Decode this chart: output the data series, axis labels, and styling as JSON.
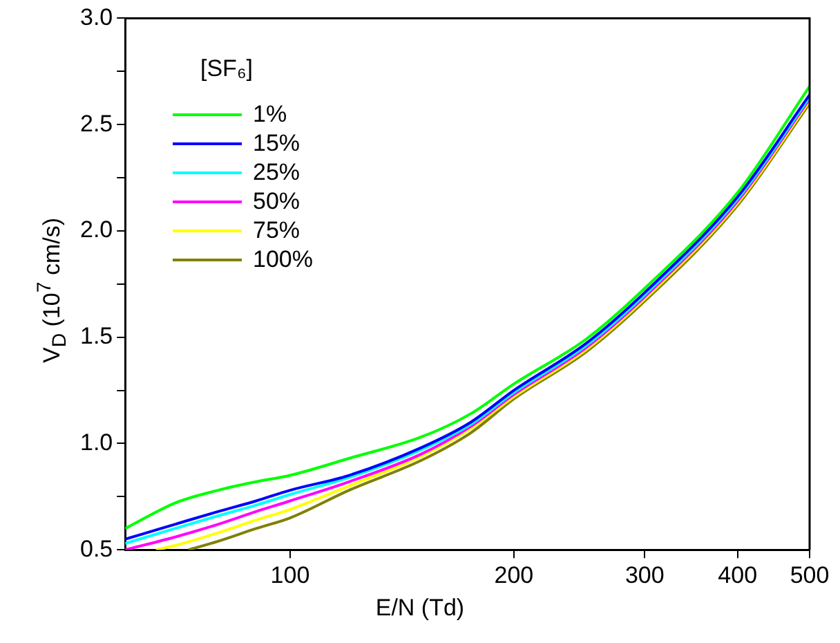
{
  "chart_data": {
    "type": "line",
    "xlabel": "E/N (Td)",
    "ylabel": "V$_{D}$ (10$^{7}$ cm/s)",
    "legend_title": "[SF₆]",
    "legend": "top left",
    "log": "x",
    "marker": "none",
    "line_style": "solid",
    "grid": false,
    "xlim": [
      60,
      500
    ],
    "xticks": [
      100,
      200,
      300,
      400,
      500
    ],
    "ylim": [
      0.5,
      3.0
    ],
    "yticks": [
      0.5,
      {
        "value": 0.75,
        "label": null
      },
      {
        "value": 1,
        "label": "1.0"
      },
      {
        "value": 1.25,
        "label": null
      },
      1.5,
      {
        "value": 1.75,
        "label": null
      },
      {
        "value": 2,
        "label": "2.0"
      },
      {
        "value": 2.25,
        "label": null
      },
      2.5,
      {
        "value": 2.75,
        "label": null
      },
      {
        "value": 3,
        "label": "3.0"
      }
    ],
    "series": [
      {
        "name": "1%",
        "color": "#00ff00",
        "x": [
          60,
          70,
          80,
          90,
          100,
          120,
          150,
          175,
          200,
          250,
          300,
          400,
          500
        ],
        "values": [
          0.6,
          0.72,
          0.78,
          0.82,
          0.85,
          0.93,
          1.03,
          1.14,
          1.28,
          1.49,
          1.73,
          2.18,
          2.68
        ]
      },
      {
        "name": "15%",
        "color": "#0000ff",
        "x": [
          60,
          70,
          80,
          90,
          100,
          120,
          150,
          175,
          200,
          250,
          300,
          400,
          500
        ],
        "values": [
          0.55,
          0.62,
          0.68,
          0.73,
          0.78,
          0.85,
          0.98,
          1.1,
          1.25,
          1.47,
          1.71,
          2.16,
          2.64
        ]
      },
      {
        "name": "25%",
        "color": "#00ffff",
        "x": [
          60,
          70,
          80,
          90,
          100,
          120,
          150,
          175,
          200,
          250,
          300,
          400,
          500
        ],
        "values": [
          0.53,
          0.6,
          0.66,
          0.71,
          0.76,
          0.84,
          0.97,
          1.09,
          1.24,
          1.46,
          1.7,
          2.15,
          2.63
        ]
      },
      {
        "name": "50%",
        "color": "#ff00ff",
        "x": [
          60,
          70,
          80,
          90,
          100,
          120,
          150,
          175,
          200,
          250,
          300,
          400,
          500
        ],
        "values": [
          0.5,
          0.56,
          0.62,
          0.68,
          0.73,
          0.82,
          0.95,
          1.08,
          1.23,
          1.45,
          1.69,
          2.14,
          2.62
        ]
      },
      {
        "name": "75%",
        "color": "#ffff00",
        "x": [
          66,
          70,
          80,
          90,
          100,
          120,
          150,
          175,
          200,
          250,
          300,
          400,
          500
        ],
        "values": [
          0.5,
          0.52,
          0.58,
          0.64,
          0.69,
          0.8,
          0.94,
          1.07,
          1.22,
          1.44,
          1.68,
          2.13,
          2.61
        ]
      },
      {
        "name": "100%",
        "color": "#808000",
        "x": [
          73,
          80,
          90,
          100,
          120,
          150,
          175,
          200,
          250,
          300,
          400,
          500
        ],
        "values": [
          0.5,
          0.54,
          0.6,
          0.65,
          0.78,
          0.92,
          1.05,
          1.21,
          1.43,
          1.67,
          2.12,
          2.6
        ]
      }
    ]
  }
}
